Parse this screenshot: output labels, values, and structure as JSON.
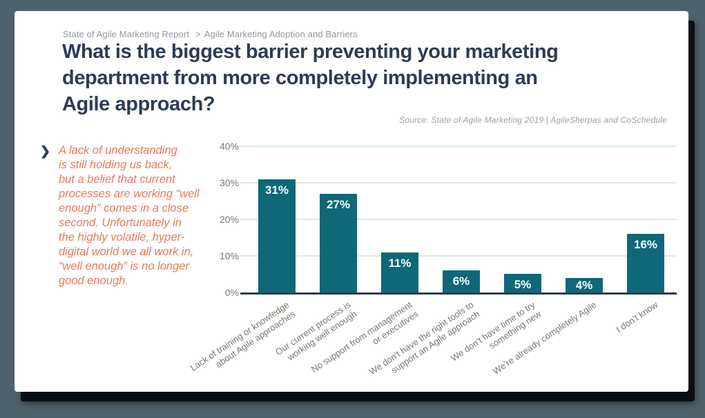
{
  "page": {
    "background_color": "#4e626b",
    "card_color": "#ffffff"
  },
  "breadcrumb": {
    "report": "State of Agile Marketing Report",
    "separator": ">",
    "section": "Agile Marketing Adoption and Barriers"
  },
  "title": "What is the biggest barrier preventing your marketing\ndepartment from more completely implementing an\nAgile approach?",
  "source": "Source: State of Agile Marketing 2019 | AgileSherpas and CoSchedule",
  "callout": {
    "bullet_glyph": "❯",
    "text": "A lack of understanding\nis still holding us back,\nbut a belief that current\nprocesses are working “well\nenough” comes in a close\nsecond. Unfortunately in\nthe highly volatile, hyper-\ndigital world we all work in,\n“well enough” is no longer\ngood enough.",
    "color": "#e8795b"
  },
  "chart_data": {
    "type": "bar",
    "title": "",
    "xlabel": "",
    "ylabel": "",
    "categories": [
      "Lack of training or knowledge\nabout Agile approaches",
      "Our current process is\nworking well enough",
      "No support from management\nor executives",
      "We don’t have the right tools to\nsupport an Agile approach",
      "We don’t have time to try\nsomething new",
      "We’re already completely Agile",
      "I don’t know"
    ],
    "values": [
      31,
      27,
      11,
      6,
      5,
      4,
      16
    ],
    "value_labels": [
      "31%",
      "27%",
      "11%",
      "6%",
      "5%",
      "4%",
      "16%"
    ],
    "ylim": [
      0,
      40
    ],
    "yticks": [
      "0%",
      "10%",
      "20%",
      "30%",
      "40%"
    ],
    "grid": true,
    "legend": "none",
    "bar_color": "#0e6878",
    "label_color": "#ffffff",
    "axis_color": "#2e3b55",
    "grid_color": "#daeae5",
    "tick_label_color": "#7d776f"
  }
}
